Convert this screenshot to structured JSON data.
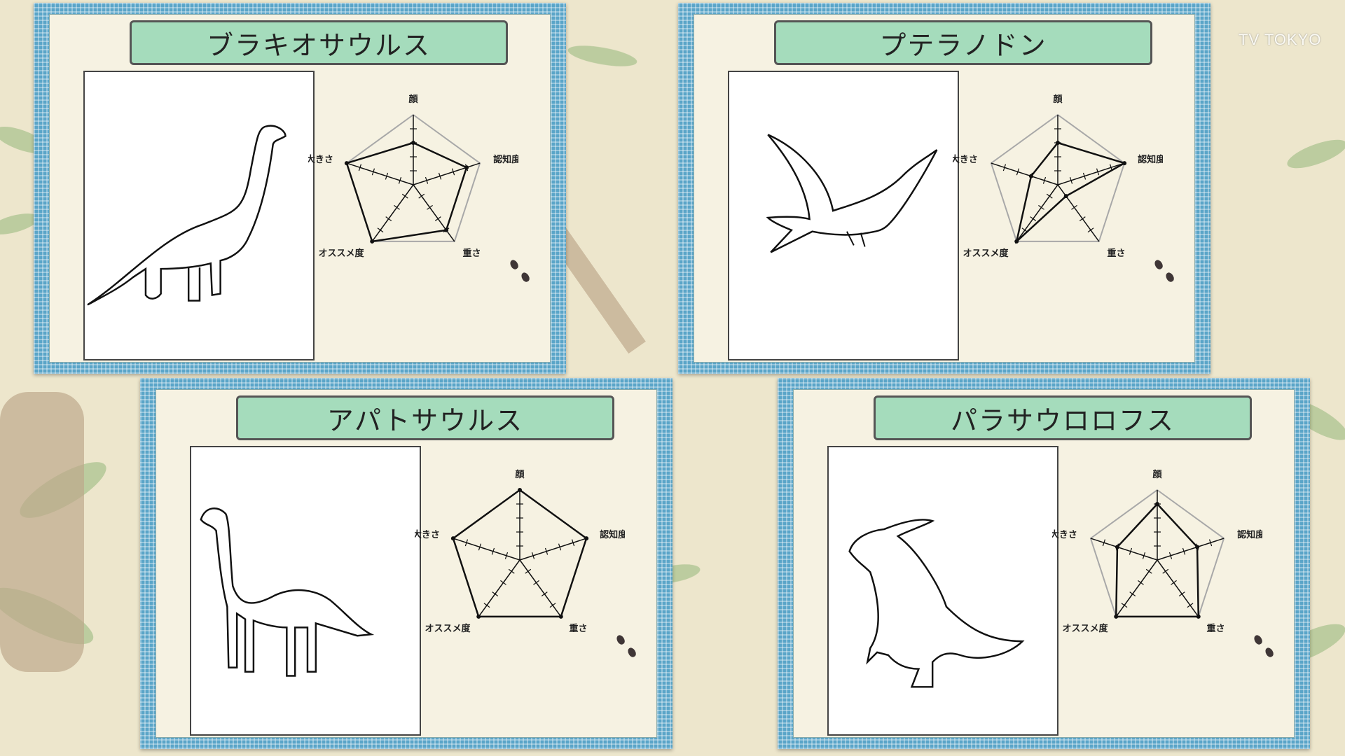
{
  "logo": "TV TOKYO",
  "axes": [
    "顔",
    "認知度",
    "重さ",
    "オススメ度",
    "大きさ"
  ],
  "colors": {
    "background": "#ede6cc",
    "card_frame": "#5aa5c8",
    "title_bg": "#a5dcbc",
    "grid": "#a8a8a8",
    "plot": "#111111"
  },
  "cards": [
    {
      "title": "ブラキオサウルス",
      "drawing_icon": "brachiosaurus-icon",
      "chart_data": {
        "type": "radar",
        "axes": [
          "顔",
          "認知度",
          "重さ",
          "オススメ度",
          "大きさ"
        ],
        "max": 5,
        "values": [
          3,
          4,
          4,
          5,
          5
        ]
      }
    },
    {
      "title": "プテラノドン",
      "drawing_icon": "pteranodon-icon",
      "chart_data": {
        "type": "radar",
        "axes": [
          "顔",
          "認知度",
          "重さ",
          "オススメ度",
          "大きさ"
        ],
        "max": 5,
        "values": [
          3,
          5,
          1,
          5,
          2
        ]
      }
    },
    {
      "title": "アパトサウルス",
      "drawing_icon": "apatosaurus-icon",
      "chart_data": {
        "type": "radar",
        "axes": [
          "顔",
          "認知度",
          "重さ",
          "オススメ度",
          "大きさ"
        ],
        "max": 5,
        "values": [
          5,
          5,
          5,
          5,
          5
        ]
      }
    },
    {
      "title": "パラサウロロフス",
      "drawing_icon": "parasaurolophus-icon",
      "chart_data": {
        "type": "radar",
        "axes": [
          "顔",
          "認知度",
          "重さ",
          "オススメ度",
          "大きさ"
        ],
        "max": 5,
        "values": [
          4,
          3,
          5,
          5,
          3
        ]
      }
    }
  ]
}
